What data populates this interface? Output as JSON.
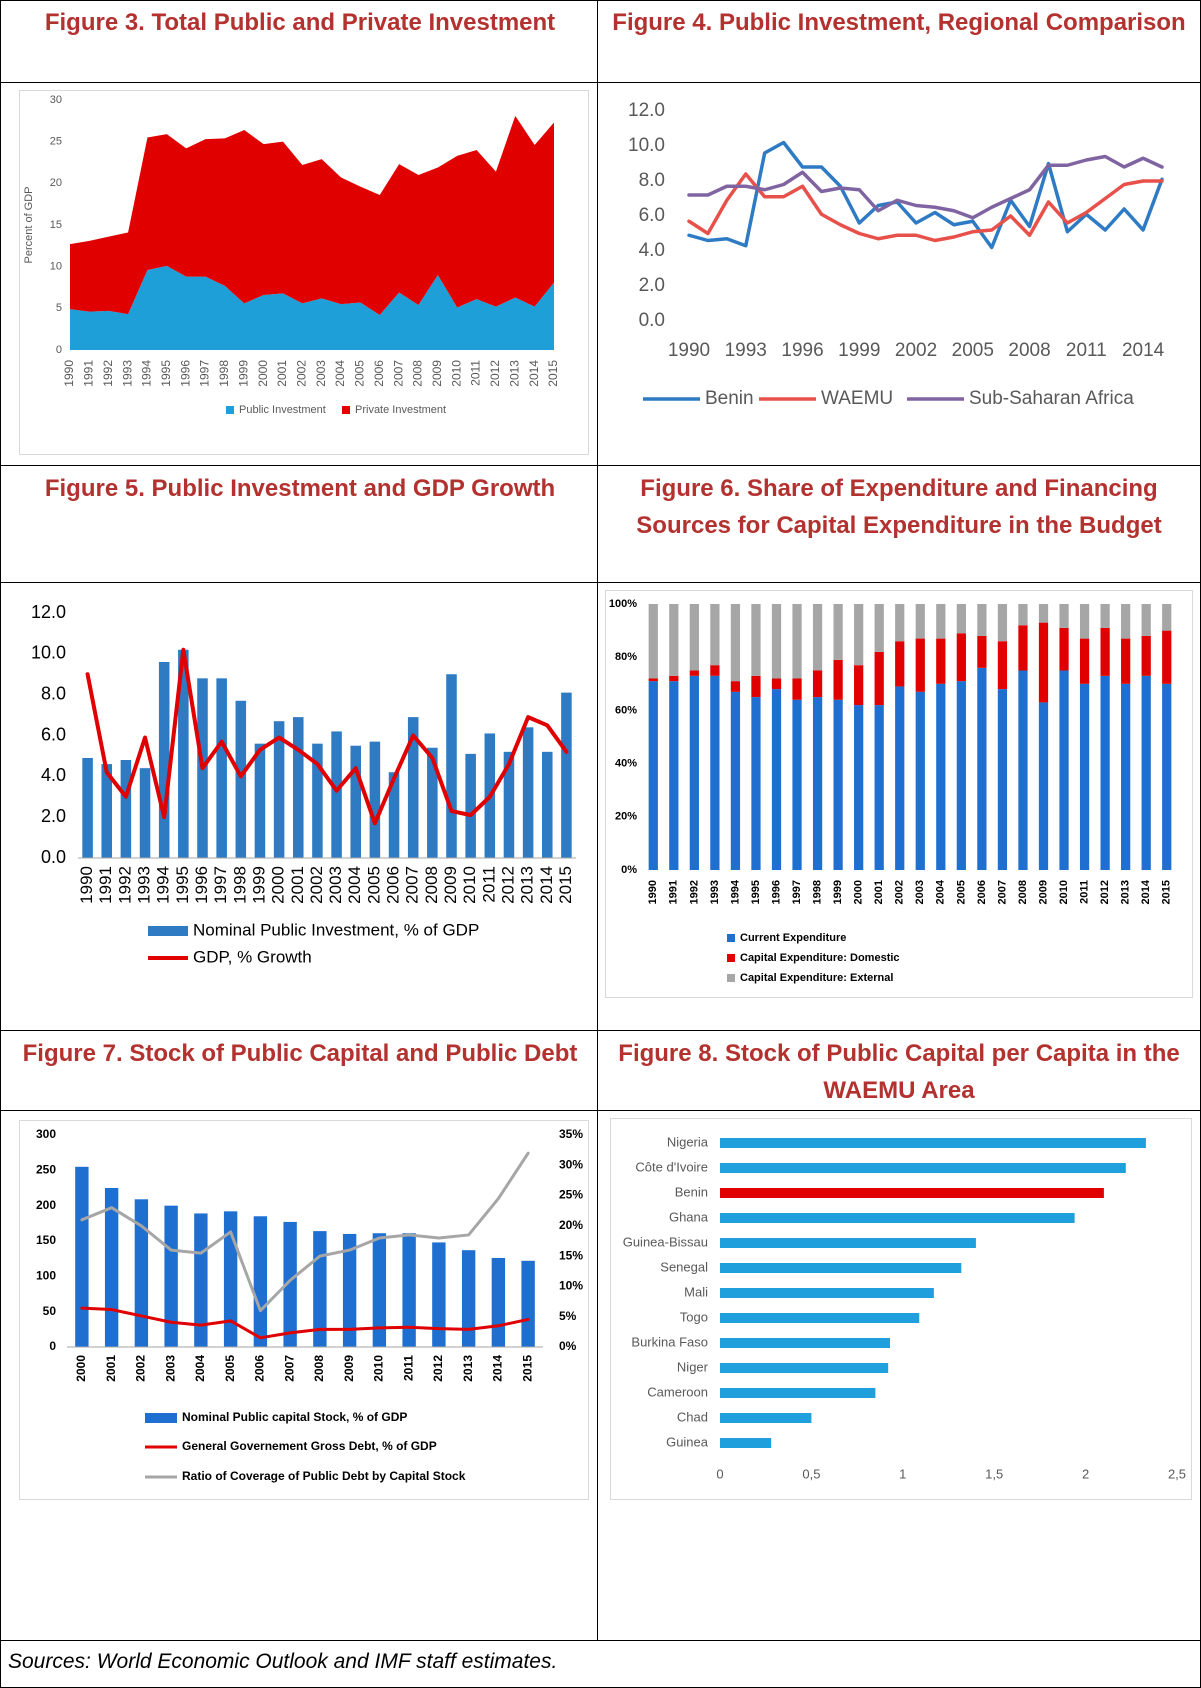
{
  "chart_data": [
    {
      "type": "area",
      "title": "Figure 3. Total Public and Private Investment",
      "ylabel": "Percent of GDP",
      "categories": [
        "1990",
        "1991",
        "1992",
        "1993",
        "1994",
        "1995",
        "1996",
        "1997",
        "1998",
        "1999",
        "2000",
        "2001",
        "2002",
        "2003",
        "2004",
        "2005",
        "2006",
        "2007",
        "2008",
        "2009",
        "2010",
        "2011",
        "2012",
        "2013",
        "2014",
        "2015"
      ],
      "series": [
        {
          "name": "Public Investment",
          "color": "#1e9fd8",
          "values": [
            4.9,
            4.6,
            4.7,
            4.3,
            9.6,
            10.1,
            8.8,
            8.8,
            7.7,
            5.6,
            6.6,
            6.8,
            5.6,
            6.2,
            5.5,
            5.7,
            4.2,
            6.9,
            5.4,
            9.0,
            5.1,
            6.1,
            5.2,
            6.3,
            5.2,
            8.1
          ]
        },
        {
          "name": "Private Investment",
          "color": "#e00000",
          "values": [
            7.8,
            8.5,
            8.9,
            9.8,
            15.9,
            15.8,
            15.4,
            16.5,
            17.7,
            20.8,
            18.1,
            18.2,
            16.6,
            16.7,
            15.2,
            13.9,
            14.4,
            15.4,
            15.6,
            12.9,
            18.2,
            17.9,
            16.2,
            21.8,
            19.4,
            19.2
          ]
        }
      ],
      "ylim": [
        0,
        30
      ],
      "yticks": [
        0,
        5,
        10,
        15,
        20,
        25,
        30
      ],
      "grid": false
    },
    {
      "type": "line",
      "title": "Figure 4. Public Investment, Regional Comparison",
      "x": [
        1990,
        1991,
        1992,
        1993,
        1994,
        1995,
        1996,
        1997,
        1998,
        1999,
        2000,
        2001,
        2002,
        2003,
        2004,
        2005,
        2006,
        2007,
        2008,
        2009,
        2010,
        2011,
        2012,
        2013,
        2014,
        2015
      ],
      "series": [
        {
          "name": "Benin",
          "color": "#2e7bc4",
          "values": [
            4.9,
            4.6,
            4.7,
            4.3,
            9.6,
            10.2,
            8.8,
            8.8,
            7.7,
            5.6,
            6.6,
            6.8,
            5.6,
            6.2,
            5.5,
            5.7,
            4.2,
            6.9,
            5.4,
            9.0,
            5.1,
            6.1,
            5.2,
            6.4,
            5.2,
            8.1
          ]
        },
        {
          "name": "WAEMU",
          "color": "#e8504a",
          "values": [
            5.7,
            5.0,
            6.9,
            8.4,
            7.1,
            7.1,
            7.7,
            6.1,
            5.5,
            5.0,
            4.7,
            4.9,
            4.9,
            4.6,
            4.8,
            5.1,
            5.2,
            6.0,
            4.9,
            6.8,
            5.6,
            6.2,
            7.0,
            7.8,
            8.0,
            8.0
          ]
        },
        {
          "name": "Sub-Saharan Africa",
          "color": "#8064a2",
          "values": [
            7.2,
            7.2,
            7.7,
            7.7,
            7.5,
            7.8,
            8.5,
            7.4,
            7.6,
            7.5,
            6.3,
            6.9,
            6.6,
            6.5,
            6.3,
            5.9,
            6.5,
            7.0,
            7.5,
            8.9,
            8.9,
            9.2,
            9.4,
            8.8,
            9.3,
            8.8
          ]
        }
      ],
      "xlim": [
        1990,
        2015
      ],
      "xticks": [
        1990,
        1993,
        1996,
        1999,
        2002,
        2005,
        2008,
        2011,
        2014
      ],
      "ylim": [
        0,
        12
      ],
      "yticks": [
        {
          "value": 0,
          "label": "0.0"
        },
        {
          "value": 2,
          "label": "2.0"
        },
        {
          "value": 4,
          "label": "4.0"
        },
        {
          "value": 6,
          "label": "6.0"
        },
        {
          "value": 8,
          "label": "8.0"
        },
        {
          "value": 10,
          "label": "10.0"
        },
        {
          "value": 12,
          "label": "12.0"
        }
      ],
      "grid": false,
      "legend": "bottom"
    },
    {
      "type": "bar",
      "title": "Figure 5. Public Investment and GDP Growth",
      "categories": [
        "1990",
        "1991",
        "1992",
        "1993",
        "1994",
        "1995",
        "1996",
        "1997",
        "1998",
        "1999",
        "2000",
        "2001",
        "2002",
        "2003",
        "2004",
        "2005",
        "2006",
        "2007",
        "2008",
        "2009",
        "2010",
        "2011",
        "2012",
        "2013",
        "2014",
        "2015"
      ],
      "series": [
        {
          "name": "Nominal Public Investment, % of GDP",
          "color": "#2e7bc4",
          "values": [
            4.9,
            4.6,
            4.8,
            4.4,
            9.6,
            10.2,
            8.8,
            8.8,
            7.7,
            5.6,
            6.7,
            6.9,
            5.6,
            6.2,
            5.5,
            5.7,
            4.2,
            6.9,
            5.4,
            9.0,
            5.1,
            6.1,
            5.2,
            6.4,
            5.2,
            8.1
          ]
        },
        {
          "name": "GDP, % Growth",
          "type": "line",
          "color": "#e00000",
          "values": [
            9.0,
            4.2,
            3.0,
            5.9,
            2.0,
            10.2,
            4.4,
            5.7,
            4.0,
            5.3,
            5.9,
            5.3,
            4.6,
            3.3,
            4.4,
            1.7,
            3.9,
            6.0,
            4.9,
            2.3,
            2.1,
            3.0,
            4.6,
            6.9,
            6.5,
            5.2
          ]
        }
      ],
      "ylim": [
        0,
        12
      ],
      "yticks": [
        {
          "value": 0,
          "label": "0.0"
        },
        {
          "value": 2,
          "label": "2.0"
        },
        {
          "value": 4,
          "label": "4.0"
        },
        {
          "value": 6,
          "label": "6.0"
        },
        {
          "value": 8,
          "label": "8.0"
        },
        {
          "value": 10,
          "label": "10.0"
        },
        {
          "value": 12,
          "label": "12.0"
        }
      ],
      "grid": false,
      "legend": "bottom"
    },
    {
      "type": "bar",
      "stacked": true,
      "title": "Figure 6. Share of Expenditure and Financing Sources for Capital Expenditure in the Budget",
      "categories": [
        "1990",
        "1991",
        "1992",
        "1993",
        "1994",
        "1995",
        "1996",
        "1997",
        "1998",
        "1999",
        "2000",
        "2001",
        "2002",
        "2003",
        "2004",
        "2005",
        "2006",
        "2007",
        "2008",
        "2009",
        "2010",
        "2011",
        "2012",
        "2013",
        "2014",
        "2015"
      ],
      "series": [
        {
          "name": "Current Expenditure",
          "color": "#1f6fd0",
          "values": [
            71,
            71,
            73,
            73,
            67,
            65,
            68,
            64,
            65,
            64,
            62,
            62,
            69,
            67,
            70,
            71,
            76,
            68,
            75,
            63,
            75,
            70,
            73,
            70,
            73,
            70
          ]
        },
        {
          "name": "Capital Expenditure: Domestic",
          "color": "#e00000",
          "values": [
            1,
            2,
            2,
            4,
            4,
            8,
            4,
            8,
            10,
            15,
            15,
            20,
            17,
            20,
            17,
            18,
            12,
            18,
            17,
            30,
            16,
            17,
            18,
            17,
            15,
            20
          ]
        },
        {
          "name": "Capital Expenditure: External",
          "color": "#a6a6a6",
          "values": [
            28,
            27,
            25,
            23,
            29,
            27,
            28,
            28,
            25,
            21,
            23,
            18,
            14,
            13,
            13,
            11,
            12,
            14,
            8,
            7,
            9,
            13,
            9,
            13,
            12,
            10
          ]
        }
      ],
      "ylim": [
        0,
        100
      ],
      "yticks": [
        {
          "value": 0,
          "label": "0%"
        },
        {
          "value": 20,
          "label": "20%"
        },
        {
          "value": 40,
          "label": "40%"
        },
        {
          "value": 60,
          "label": "60%"
        },
        {
          "value": 80,
          "label": "80%"
        },
        {
          "value": 100,
          "label": "100%"
        }
      ],
      "grid": false,
      "legend": "bottom"
    },
    {
      "type": "bar",
      "title": "Figure 7. Stock of Public Capital and Public Debt",
      "categories": [
        "2000",
        "2001",
        "2002",
        "2003",
        "2004",
        "2005",
        "2006",
        "2007",
        "2008",
        "2009",
        "2010",
        "2011",
        "2012",
        "2013",
        "2014",
        "2015"
      ],
      "series": [
        {
          "name": "Nominal Public capital Stock, % of GDP",
          "color": "#1f6fd0",
          "values": [
            255,
            225,
            209,
            200,
            189,
            192,
            185,
            177,
            164,
            160,
            161,
            161,
            148,
            137,
            126,
            122
          ]
        },
        {
          "name": "General Governement Gross Debt, % of GDP",
          "type": "line",
          "color": "#e00000",
          "values": [
            55,
            53,
            44,
            35,
            31,
            37,
            13,
            20,
            25,
            25,
            27,
            28,
            26,
            25,
            30,
            39
          ]
        },
        {
          "name": "Ratio of Coverage of Public Debt by Capital Stock",
          "type": "line",
          "axis": "y2",
          "color": "#a6a6a6",
          "values": [
            21,
            23,
            20,
            16,
            15.5,
            19,
            6,
            11,
            15,
            16,
            18,
            18.5,
            18,
            18.5,
            24.5,
            32
          ]
        }
      ],
      "ylim": [
        0,
        300
      ],
      "yticks": [
        0,
        50,
        100,
        150,
        200,
        250,
        300
      ],
      "y2lim": [
        0,
        35
      ],
      "y2ticks": [
        {
          "value": 0,
          "label": "0%"
        },
        {
          "value": 5,
          "label": "5%"
        },
        {
          "value": 10,
          "label": "10%"
        },
        {
          "value": 15,
          "label": "15%"
        },
        {
          "value": 20,
          "label": "20%"
        },
        {
          "value": 25,
          "label": "25%"
        },
        {
          "value": 30,
          "label": "30%"
        },
        {
          "value": 35,
          "label": "35%"
        }
      ],
      "grid": false,
      "legend": "bottom"
    },
    {
      "type": "bar",
      "orientation": "horizontal",
      "title": "Figure 8. Stock of Public Capital per Capita in the WAEMU Area",
      "categories": [
        "Nigeria",
        "Côte d'Ivoire",
        "Benin",
        "Ghana",
        "Guinea-Bissau",
        "Senegal",
        "Mali",
        "Togo",
        "Burkina Faso",
        "Niger",
        "Cameroon",
        "Chad",
        "Guinea"
      ],
      "values": [
        2.33,
        2.22,
        2.1,
        1.94,
        1.4,
        1.32,
        1.17,
        1.09,
        0.93,
        0.92,
        0.85,
        0.5,
        0.28
      ],
      "colors": [
        "#1fa0dc",
        "#1fa0dc",
        "#e00000",
        "#1fa0dc",
        "#1fa0dc",
        "#1fa0dc",
        "#1fa0dc",
        "#1fa0dc",
        "#1fa0dc",
        "#1fa0dc",
        "#1fa0dc",
        "#1fa0dc",
        "#1fa0dc"
      ],
      "xlim": [
        0,
        2.5
      ],
      "xticks": [
        0,
        {
          "value": 0.5,
          "label": "0,5"
        },
        1,
        {
          "value": 1.5,
          "label": "1,5"
        },
        2,
        {
          "value": 2.5,
          "label": "2,5"
        }
      ],
      "grid": false
    }
  ],
  "source": "Sources: World Economic Outlook and IMF staff estimates."
}
